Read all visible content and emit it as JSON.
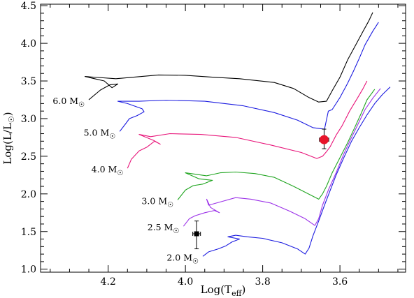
{
  "chart_data": {
    "type": "line",
    "title": "",
    "xlabel": "Log(T<sub>eff</sub>)",
    "ylabel": "Log(L/L<sub>☉</sub>)",
    "xlim": [
      4.375,
      3.43
    ],
    "ylim": [
      0.96,
      4.52
    ],
    "x_reversed": true,
    "x_ticks": [
      4.2,
      4.0,
      3.8,
      3.6
    ],
    "x_tick_labels": [
      "4.2",
      "4.0",
      "3.8",
      "3.6"
    ],
    "x_minor_step": 0.05,
    "y_ticks": [
      1.0,
      1.5,
      2.0,
      2.5,
      3.0,
      3.5,
      4.0,
      4.5
    ],
    "y_tick_labels": [
      "1.0",
      "1.5",
      "2.0",
      "2.5",
      "3.0",
      "3.5",
      "4.0",
      "4.5"
    ],
    "y_minor_step": 0.1,
    "grid": false,
    "series": [
      {
        "name": "6.0 M☉",
        "color": "#000000",
        "points": [
          [
            4.25,
            3.25
          ],
          [
            4.22,
            3.38
          ],
          [
            4.195,
            3.45
          ],
          [
            4.175,
            3.46
          ],
          [
            4.19,
            3.41
          ],
          [
            4.21,
            3.5
          ],
          [
            4.26,
            3.56
          ],
          [
            4.18,
            3.53
          ],
          [
            4.07,
            3.58
          ],
          [
            4.0,
            3.575
          ],
          [
            3.93,
            3.55
          ],
          [
            3.86,
            3.53
          ],
          [
            3.77,
            3.48
          ],
          [
            3.72,
            3.4
          ],
          [
            3.68,
            3.28
          ],
          [
            3.655,
            3.22
          ],
          [
            3.635,
            3.23
          ],
          [
            3.62,
            3.37
          ],
          [
            3.6,
            3.55
          ],
          [
            3.58,
            3.78
          ],
          [
            3.56,
            3.97
          ],
          [
            3.54,
            4.16
          ],
          [
            3.525,
            4.3
          ],
          [
            3.515,
            4.41
          ]
        ]
      },
      {
        "name": "5.0 M☉",
        "color": "#1c1ce0",
        "points": [
          [
            4.17,
            2.83
          ],
          [
            4.155,
            2.93
          ],
          [
            4.145,
            3.0
          ],
          [
            4.125,
            3.04
          ],
          [
            4.107,
            3.09
          ],
          [
            4.112,
            3.13
          ],
          [
            4.15,
            3.2
          ],
          [
            4.175,
            3.23
          ],
          [
            4.12,
            3.23
          ],
          [
            4.05,
            3.245
          ],
          [
            3.95,
            3.23
          ],
          [
            3.85,
            3.17
          ],
          [
            3.77,
            3.08
          ],
          [
            3.71,
            2.98
          ],
          [
            3.67,
            2.88
          ],
          [
            3.64,
            2.86
          ],
          [
            3.63,
            3.1
          ],
          [
            3.62,
            3.12
          ],
          [
            3.6,
            3.28
          ],
          [
            3.58,
            3.47
          ],
          [
            3.565,
            3.63
          ],
          [
            3.55,
            3.8
          ],
          [
            3.535,
            3.98
          ],
          [
            3.515,
            4.16
          ],
          [
            3.5,
            4.28
          ]
        ]
      },
      {
        "name": "4.0 M☉",
        "color": "#e8157a",
        "points": [
          [
            4.15,
            2.34
          ],
          [
            4.14,
            2.46
          ],
          [
            4.12,
            2.57
          ],
          [
            4.1,
            2.62
          ],
          [
            4.08,
            2.7
          ],
          [
            4.065,
            2.66
          ],
          [
            4.082,
            2.71
          ],
          [
            4.12,
            2.79
          ],
          [
            4.09,
            2.76
          ],
          [
            4.04,
            2.8
          ],
          [
            3.96,
            2.79
          ],
          [
            3.87,
            2.75
          ],
          [
            3.78,
            2.65
          ],
          [
            3.7,
            2.55
          ],
          [
            3.66,
            2.47
          ],
          [
            3.645,
            2.5
          ],
          [
            3.635,
            2.56
          ],
          [
            3.625,
            2.63
          ],
          [
            3.61,
            2.78
          ],
          [
            3.595,
            2.9
          ],
          [
            3.575,
            3.1
          ],
          [
            3.555,
            3.27
          ],
          [
            3.54,
            3.4
          ],
          [
            3.53,
            3.5
          ]
        ]
      },
      {
        "name": "3.0 M☉",
        "color": "#20a520",
        "points": [
          [
            4.02,
            1.92
          ],
          [
            4.0,
            2.05
          ],
          [
            3.98,
            2.11
          ],
          [
            3.955,
            2.13
          ],
          [
            3.93,
            2.18
          ],
          [
            3.965,
            2.2
          ],
          [
            4.0,
            2.28
          ],
          [
            3.945,
            2.24
          ],
          [
            3.91,
            2.28
          ],
          [
            3.87,
            2.29
          ],
          [
            3.82,
            2.27
          ],
          [
            3.77,
            2.22
          ],
          [
            3.72,
            2.1
          ],
          [
            3.67,
            1.97
          ],
          [
            3.655,
            1.93
          ],
          [
            3.645,
            2.0
          ],
          [
            3.635,
            2.1
          ],
          [
            3.62,
            2.28
          ],
          [
            3.6,
            2.48
          ],
          [
            3.58,
            2.68
          ],
          [
            3.56,
            2.9
          ],
          [
            3.545,
            3.07
          ],
          [
            3.53,
            3.25
          ],
          [
            3.51,
            3.39
          ]
        ]
      },
      {
        "name": "2.5 M☉",
        "color": "#9b30e8",
        "points": [
          [
            4.005,
            1.57
          ],
          [
            3.99,
            1.67
          ],
          [
            3.975,
            1.71
          ],
          [
            3.95,
            1.75
          ],
          [
            3.925,
            1.78
          ],
          [
            3.912,
            1.75
          ],
          [
            3.935,
            1.82
          ],
          [
            3.945,
            1.93
          ],
          [
            3.94,
            1.85
          ],
          [
            3.905,
            1.9
          ],
          [
            3.87,
            1.95
          ],
          [
            3.83,
            1.93
          ],
          [
            3.78,
            1.88
          ],
          [
            3.73,
            1.77
          ],
          [
            3.69,
            1.67
          ],
          [
            3.665,
            1.58
          ],
          [
            3.655,
            1.67
          ],
          [
            3.645,
            1.85
          ],
          [
            3.63,
            2.05
          ],
          [
            3.61,
            2.28
          ],
          [
            3.59,
            2.53
          ],
          [
            3.57,
            2.75
          ],
          [
            3.55,
            2.96
          ],
          [
            3.535,
            3.12
          ],
          [
            3.515,
            3.27
          ],
          [
            3.495,
            3.4
          ]
        ]
      },
      {
        "name": "2.0 M☉",
        "color": "#1c1ce0",
        "points": [
          [
            3.955,
            1.17
          ],
          [
            3.94,
            1.23
          ],
          [
            3.915,
            1.27
          ],
          [
            3.895,
            1.31
          ],
          [
            3.88,
            1.36
          ],
          [
            3.86,
            1.4
          ],
          [
            3.89,
            1.43
          ],
          [
            3.87,
            1.45
          ],
          [
            3.84,
            1.43
          ],
          [
            3.8,
            1.41
          ],
          [
            3.75,
            1.35
          ],
          [
            3.71,
            1.27
          ],
          [
            3.69,
            1.2
          ],
          [
            3.68,
            1.28
          ],
          [
            3.67,
            1.44
          ],
          [
            3.655,
            1.64
          ],
          [
            3.64,
            1.85
          ],
          [
            3.625,
            2.05
          ],
          [
            3.61,
            2.25
          ],
          [
            3.59,
            2.48
          ],
          [
            3.57,
            2.7
          ],
          [
            3.55,
            2.88
          ],
          [
            3.53,
            3.05
          ],
          [
            3.51,
            3.2
          ],
          [
            3.49,
            3.32
          ],
          [
            3.47,
            3.42
          ]
        ]
      }
    ],
    "data_points": [
      {
        "name": "star-red",
        "x": 3.641,
        "y": 2.72,
        "x_err": 0.012,
        "y_err_low": 0.12,
        "y_err_high": 0.14,
        "color": "#e8142a",
        "marker": "circle"
      },
      {
        "name": "star-black",
        "x": 3.971,
        "y": 1.47,
        "x_err": 0.01,
        "y_err_low": 0.2,
        "y_err_high": 0.17,
        "color": "#000000",
        "marker": "square"
      }
    ],
    "track_labels": [
      {
        "text": "6.0 M",
        "sun": "☉",
        "x": 4.25,
        "y": 3.25
      },
      {
        "text": "5.0 M",
        "sun": "☉",
        "x": 4.17,
        "y": 2.83
      },
      {
        "text": "4.0 M",
        "sun": "☉",
        "x": 4.15,
        "y": 2.34
      },
      {
        "text": "3.0 M",
        "sun": "☉",
        "x": 4.02,
        "y": 1.92
      },
      {
        "text": "2.5 M",
        "sun": "☉",
        "x": 4.005,
        "y": 1.57
      },
      {
        "text": "2.0 M",
        "sun": "☉",
        "x": 3.955,
        "y": 1.17
      }
    ]
  }
}
